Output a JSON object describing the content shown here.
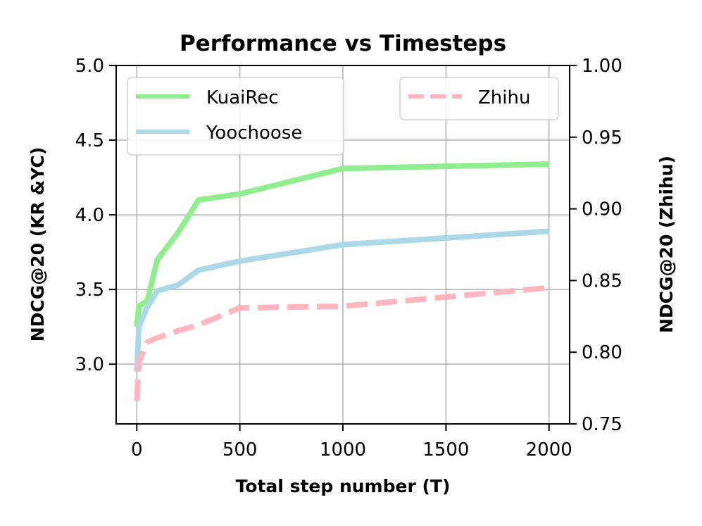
{
  "chart_data": {
    "type": "line",
    "title": "Performance vs Timesteps",
    "xlabel": "Total step number (T)",
    "ylabel_left": "NDCG@20 (KR &YC)",
    "ylabel_right": "NDCG@20 (Zhihu)",
    "xlim": [
      -100,
      2100
    ],
    "ylim_left": [
      2.6,
      5.0
    ],
    "ylim_right": [
      0.75,
      1.0
    ],
    "xticks": [
      0,
      500,
      1000,
      1500,
      2000
    ],
    "yticks_left": [
      3.0,
      3.5,
      4.0,
      4.5,
      5.0
    ],
    "yticks_right": [
      0.75,
      0.8,
      0.85,
      0.9,
      0.95,
      1.0
    ],
    "grid": true,
    "series": [
      {
        "name": "KuaiRec",
        "axis": "left",
        "color": "#90ee90",
        "style": "solid",
        "x": [
          0,
          10,
          50,
          100,
          200,
          300,
          500,
          1000,
          2000
        ],
        "y": [
          3.25,
          3.39,
          3.42,
          3.7,
          3.88,
          4.1,
          4.14,
          4.31,
          4.34
        ]
      },
      {
        "name": "Yoochoose",
        "axis": "left",
        "color": "#add8e6",
        "style": "solid",
        "x": [
          0,
          10,
          50,
          100,
          200,
          300,
          500,
          1000,
          2000
        ],
        "y": [
          2.95,
          3.25,
          3.38,
          3.49,
          3.53,
          3.63,
          3.69,
          3.8,
          3.89
        ]
      },
      {
        "name": "Zhihu",
        "axis": "right",
        "color": "#ffb6c1",
        "style": "dashed",
        "x": [
          0,
          10,
          50,
          100,
          200,
          300,
          500,
          1000,
          2000
        ],
        "y": [
          0.766,
          0.793,
          0.807,
          0.81,
          0.815,
          0.819,
          0.831,
          0.832,
          0.845
        ]
      }
    ],
    "legend": [
      {
        "position": "upper-left",
        "entries": [
          "KuaiRec",
          "Yoochoose"
        ]
      },
      {
        "position": "upper-right",
        "entries": [
          "Zhihu"
        ]
      }
    ]
  }
}
